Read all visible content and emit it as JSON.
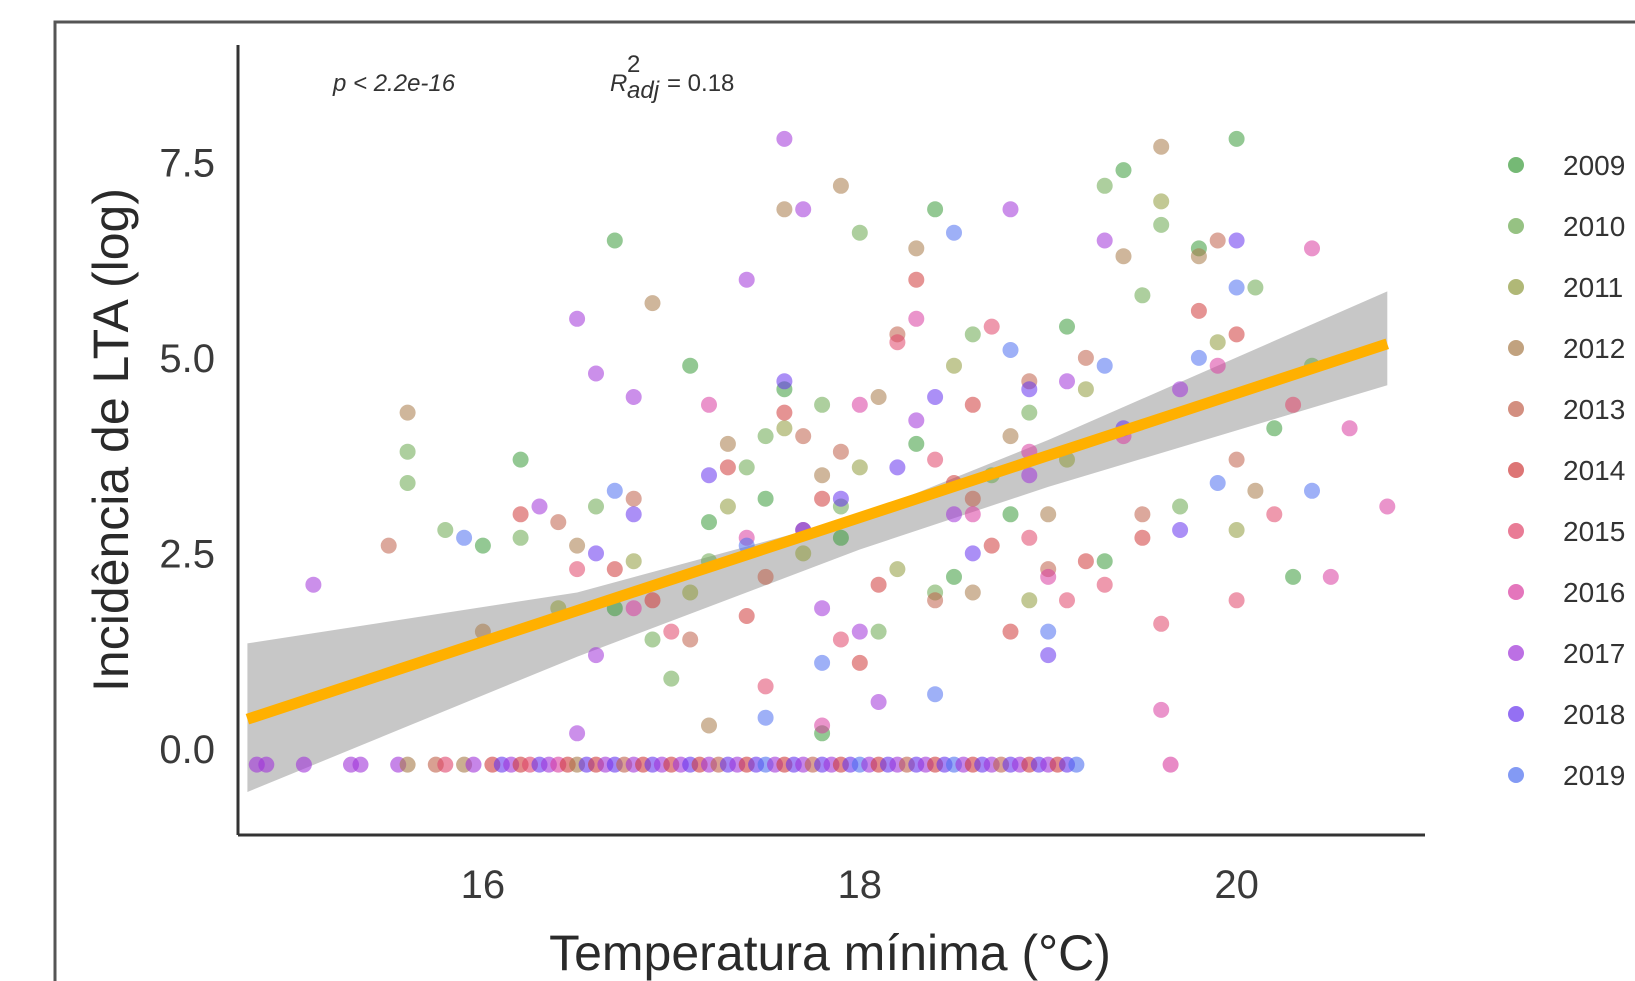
{
  "chart_data": {
    "type": "scatter",
    "xlabel": "Temperatura mínima (°C)",
    "ylabel": "Incidência de LTA (log)",
    "xlim": [
      14.7,
      21.0
    ],
    "ylim": [
      -1.1,
      9.0
    ],
    "x_ticks": [
      16,
      18,
      20
    ],
    "x_tick_labels": [
      "16",
      "18",
      "20"
    ],
    "y_ticks": [
      0.0,
      2.5,
      5.0,
      7.5
    ],
    "y_tick_labels": [
      "0.0",
      "2.5",
      "5.0",
      "7.5"
    ],
    "grid": false,
    "legend_position": "right",
    "annotations": {
      "p_value": "p < 2.2e-16",
      "r2_label": "R",
      "r2_sup": "2",
      "r2_sub": "adj",
      "r2_value": "= 0.18"
    },
    "fit_line": {
      "x": [
        14.75,
        20.8
      ],
      "y": [
        0.38,
        5.18
      ],
      "color": "#ffb000"
    },
    "confidence_band": {
      "x": [
        14.75,
        16.5,
        18.0,
        19.0,
        20.8
      ],
      "lower": [
        -0.55,
        1.18,
        2.55,
        3.35,
        4.65
      ],
      "upper": [
        1.35,
        2.0,
        2.98,
        3.95,
        5.85
      ],
      "color": "#bdbdbd"
    },
    "series": [
      {
        "name": "2009",
        "color": "#3a9b3a",
        "points": [
          [
            20.0,
            7.8
          ],
          [
            16.2,
            3.7
          ],
          [
            17.1,
            4.9
          ],
          [
            17.6,
            4.6
          ],
          [
            18.3,
            3.9
          ],
          [
            19.1,
            5.4
          ],
          [
            19.4,
            7.4
          ],
          [
            18.5,
            2.2
          ],
          [
            17.5,
            3.2
          ],
          [
            16.7,
            1.8
          ],
          [
            19.8,
            6.4
          ],
          [
            18.8,
            3.0
          ],
          [
            17.9,
            2.7
          ],
          [
            16.0,
            2.6
          ],
          [
            20.3,
            2.2
          ],
          [
            19.3,
            2.4
          ],
          [
            18.4,
            6.9
          ],
          [
            17.2,
            2.9
          ],
          [
            16.7,
            6.5
          ],
          [
            20.2,
            4.1
          ],
          [
            17.8,
            0.2
          ]
        ]
      },
      {
        "name": "2010",
        "color": "#6aa84f",
        "points": [
          [
            15.6,
            3.8
          ],
          [
            15.6,
            3.4
          ],
          [
            16.9,
            1.4
          ],
          [
            17.2,
            2.4
          ],
          [
            17.8,
            4.4
          ],
          [
            18.0,
            6.6
          ],
          [
            18.6,
            5.3
          ],
          [
            19.3,
            7.2
          ],
          [
            19.6,
            6.7
          ],
          [
            20.4,
            4.9
          ],
          [
            17.4,
            3.6
          ],
          [
            16.6,
            3.1
          ],
          [
            18.1,
            1.5
          ],
          [
            18.7,
            3.5
          ],
          [
            19.5,
            5.8
          ],
          [
            17.0,
            0.9
          ],
          [
            17.9,
            3.1
          ],
          [
            18.9,
            4.3
          ],
          [
            16.2,
            2.7
          ],
          [
            20.1,
            5.9
          ],
          [
            15.8,
            2.8
          ],
          [
            17.5,
            4.0
          ],
          [
            18.4,
            2.0
          ],
          [
            19.7,
            3.1
          ]
        ]
      },
      {
        "name": "2011",
        "color": "#8f9a3d",
        "points": [
          [
            17.3,
            3.1
          ],
          [
            17.7,
            2.5
          ],
          [
            18.5,
            4.9
          ],
          [
            19.1,
            3.7
          ],
          [
            19.6,
            7.0
          ],
          [
            17.1,
            2.0
          ],
          [
            16.4,
            1.8
          ],
          [
            18.2,
            2.3
          ],
          [
            19.9,
            5.2
          ],
          [
            16.8,
            2.4
          ],
          [
            18.0,
            3.6
          ],
          [
            19.2,
            4.6
          ],
          [
            17.6,
            4.1
          ],
          [
            18.9,
            1.9
          ],
          [
            20.0,
            2.8
          ]
        ]
      },
      {
        "name": "2012",
        "color": "#a77a48",
        "points": [
          [
            15.6,
            4.3
          ],
          [
            16.0,
            1.5
          ],
          [
            16.9,
            5.7
          ],
          [
            17.3,
            3.9
          ],
          [
            17.6,
            6.9
          ],
          [
            17.9,
            7.2
          ],
          [
            18.3,
            6.4
          ],
          [
            18.6,
            2.0
          ],
          [
            19.0,
            3.0
          ],
          [
            19.6,
            7.7
          ],
          [
            17.2,
            0.3
          ],
          [
            18.1,
            4.5
          ],
          [
            19.4,
            6.3
          ],
          [
            16.5,
            2.6
          ],
          [
            17.8,
            3.5
          ],
          [
            18.8,
            4.0
          ],
          [
            19.8,
            6.3
          ],
          [
            20.1,
            3.3
          ]
        ]
      },
      {
        "name": "2013",
        "color": "#c0604a",
        "points": [
          [
            15.5,
            2.6
          ],
          [
            16.4,
            2.9
          ],
          [
            17.1,
            1.4
          ],
          [
            17.7,
            4.0
          ],
          [
            18.2,
            5.3
          ],
          [
            18.6,
            3.2
          ],
          [
            19.0,
            2.3
          ],
          [
            19.5,
            3.0
          ],
          [
            19.9,
            6.5
          ],
          [
            17.9,
            3.8
          ],
          [
            18.4,
            1.9
          ],
          [
            16.8,
            3.2
          ],
          [
            19.2,
            5.0
          ],
          [
            17.5,
            2.2
          ],
          [
            18.9,
            4.7
          ],
          [
            20.0,
            3.7
          ]
        ]
      },
      {
        "name": "2014",
        "color": "#cf3a3a",
        "points": [
          [
            16.2,
            3.0
          ],
          [
            16.7,
            2.3
          ],
          [
            17.4,
            1.7
          ],
          [
            17.8,
            3.2
          ],
          [
            18.1,
            2.1
          ],
          [
            18.5,
            3.4
          ],
          [
            18.8,
            1.5
          ],
          [
            19.2,
            2.4
          ],
          [
            19.8,
            5.6
          ],
          [
            20.0,
            5.3
          ],
          [
            17.6,
            4.3
          ],
          [
            18.3,
            6.0
          ],
          [
            18.7,
            2.6
          ],
          [
            16.9,
            1.9
          ],
          [
            19.5,
            2.7
          ],
          [
            18.0,
            1.1
          ],
          [
            17.3,
            3.6
          ],
          [
            18.6,
            4.4
          ]
        ]
      },
      {
        "name": "2015",
        "color": "#e0456a",
        "points": [
          [
            17.0,
            1.5
          ],
          [
            17.5,
            0.8
          ],
          [
            17.9,
            1.4
          ],
          [
            18.4,
            3.7
          ],
          [
            18.7,
            5.4
          ],
          [
            19.1,
            1.9
          ],
          [
            19.6,
            1.6
          ],
          [
            20.0,
            1.9
          ],
          [
            20.3,
            4.4
          ],
          [
            18.2,
            5.2
          ],
          [
            17.7,
            2.8
          ],
          [
            19.3,
            2.1
          ],
          [
            16.5,
            2.3
          ],
          [
            18.9,
            2.7
          ],
          [
            20.2,
            3.0
          ]
        ]
      },
      {
        "name": "2016",
        "color": "#d83ca0",
        "points": [
          [
            16.8,
            1.8
          ],
          [
            17.8,
            0.3
          ],
          [
            18.3,
            5.5
          ],
          [
            18.9,
            3.8
          ],
          [
            19.4,
            4.0
          ],
          [
            19.9,
            4.9
          ],
          [
            20.4,
            6.4
          ],
          [
            20.5,
            2.2
          ],
          [
            20.8,
            3.1
          ],
          [
            19.6,
            0.5
          ],
          [
            18.6,
            3.0
          ],
          [
            17.2,
            4.4
          ],
          [
            19.0,
            2.2
          ],
          [
            20.6,
            4.1
          ],
          [
            18.0,
            4.4
          ],
          [
            17.4,
            2.7
          ]
        ]
      },
      {
        "name": "2017",
        "color": "#a033d8",
        "points": [
          [
            15.1,
            2.1
          ],
          [
            16.3,
            3.1
          ],
          [
            16.5,
            5.5
          ],
          [
            16.8,
            4.5
          ],
          [
            17.4,
            6.0
          ],
          [
            17.6,
            7.8
          ],
          [
            17.7,
            6.9
          ],
          [
            18.1,
            0.6
          ],
          [
            18.3,
            4.2
          ],
          [
            18.8,
            6.9
          ],
          [
            19.3,
            6.5
          ],
          [
            16.5,
            0.2
          ],
          [
            17.8,
            1.8
          ],
          [
            18.5,
            3.0
          ],
          [
            19.7,
            4.6
          ],
          [
            16.6,
            4.8
          ],
          [
            18.0,
            1.5
          ],
          [
            19.1,
            4.7
          ],
          [
            16.6,
            1.2
          ],
          [
            18.9,
            3.5
          ]
        ]
      },
      {
        "name": "2018",
        "color": "#6633ee",
        "points": [
          [
            16.6,
            2.5
          ],
          [
            17.2,
            3.5
          ],
          [
            17.6,
            4.7
          ],
          [
            17.9,
            3.2
          ],
          [
            18.4,
            4.5
          ],
          [
            18.6,
            2.5
          ],
          [
            19.0,
            1.2
          ],
          [
            19.4,
            4.1
          ],
          [
            20.0,
            6.5
          ],
          [
            17.7,
            2.8
          ],
          [
            18.2,
            3.6
          ],
          [
            18.9,
            4.6
          ],
          [
            19.7,
            2.8
          ],
          [
            16.8,
            3.0
          ]
        ]
      },
      {
        "name": "2019",
        "color": "#4f6ff0",
        "points": [
          [
            15.9,
            2.7
          ],
          [
            16.7,
            3.3
          ],
          [
            17.5,
            0.4
          ],
          [
            17.8,
            1.1
          ],
          [
            18.4,
            0.7
          ],
          [
            18.5,
            6.6
          ],
          [
            19.0,
            1.5
          ],
          [
            19.3,
            4.9
          ],
          [
            19.9,
            3.4
          ],
          [
            20.0,
            5.9
          ],
          [
            20.4,
            3.3
          ],
          [
            18.8,
            5.1
          ],
          [
            17.4,
            2.6
          ],
          [
            19.8,
            5.0
          ]
        ]
      }
    ],
    "baseline_points": {
      "y": -0.2,
      "x": [
        14.8,
        14.85,
        15.05,
        15.3,
        15.35,
        15.55,
        15.6,
        15.75,
        15.8,
        15.9,
        15.95,
        16.05,
        16.1,
        16.15,
        16.2,
        16.25,
        16.3,
        16.35,
        16.4,
        16.45,
        16.5,
        16.55,
        16.6,
        16.65,
        16.7,
        16.75,
        16.8,
        16.85,
        16.9,
        16.95,
        17.0,
        17.05,
        17.1,
        17.15,
        17.2,
        17.25,
        17.3,
        17.35,
        17.4,
        17.45,
        17.5,
        17.55,
        17.6,
        17.65,
        17.7,
        17.75,
        17.8,
        17.85,
        17.9,
        17.95,
        18.0,
        18.05,
        18.1,
        18.15,
        18.2,
        18.25,
        18.3,
        18.35,
        18.4,
        18.45,
        18.5,
        18.55,
        18.6,
        18.65,
        18.7,
        18.75,
        18.8,
        18.85,
        18.9,
        18.95,
        19.0,
        19.05,
        19.1,
        19.15,
        19.65
      ],
      "colors": [
        "#a033d8",
        "#a033d8",
        "#a033d8",
        "#a033d8",
        "#a033d8",
        "#a033d8",
        "#a77a48",
        "#c0604a",
        "#e0456a",
        "#a77a48",
        "#a033d8",
        "#cf3a3a",
        "#6633ee",
        "#a033d8",
        "#cf3a3a",
        "#e0456a",
        "#6633ee",
        "#a033d8",
        "#d83ca0",
        "#cf3a3a",
        "#a77a48",
        "#6633ee",
        "#cf3a3a",
        "#a033d8",
        "#6633ee",
        "#c0604a",
        "#a033d8",
        "#cf3a3a",
        "#6633ee",
        "#a033d8",
        "#cf3a3a",
        "#a033d8",
        "#6633ee",
        "#cf3a3a",
        "#a033d8",
        "#c0604a",
        "#6633ee",
        "#a033d8",
        "#cf3a3a",
        "#6633ee",
        "#4f6ff0",
        "#a033d8",
        "#cf3a3a",
        "#6633ee",
        "#a033d8",
        "#c0604a",
        "#6633ee",
        "#a033d8",
        "#cf3a3a",
        "#6633ee",
        "#4f6ff0",
        "#a033d8",
        "#cf3a3a",
        "#6633ee",
        "#a033d8",
        "#c0604a",
        "#6633ee",
        "#a033d8",
        "#cf3a3a",
        "#6633ee",
        "#4f6ff0",
        "#a033d8",
        "#cf3a3a",
        "#6633ee",
        "#a033d8",
        "#c0604a",
        "#6633ee",
        "#a033d8",
        "#cf3a3a",
        "#6633ee",
        "#a033d8",
        "#cf3a3a",
        "#6633ee",
        "#4f6ff0",
        "#d83ca0"
      ]
    }
  }
}
